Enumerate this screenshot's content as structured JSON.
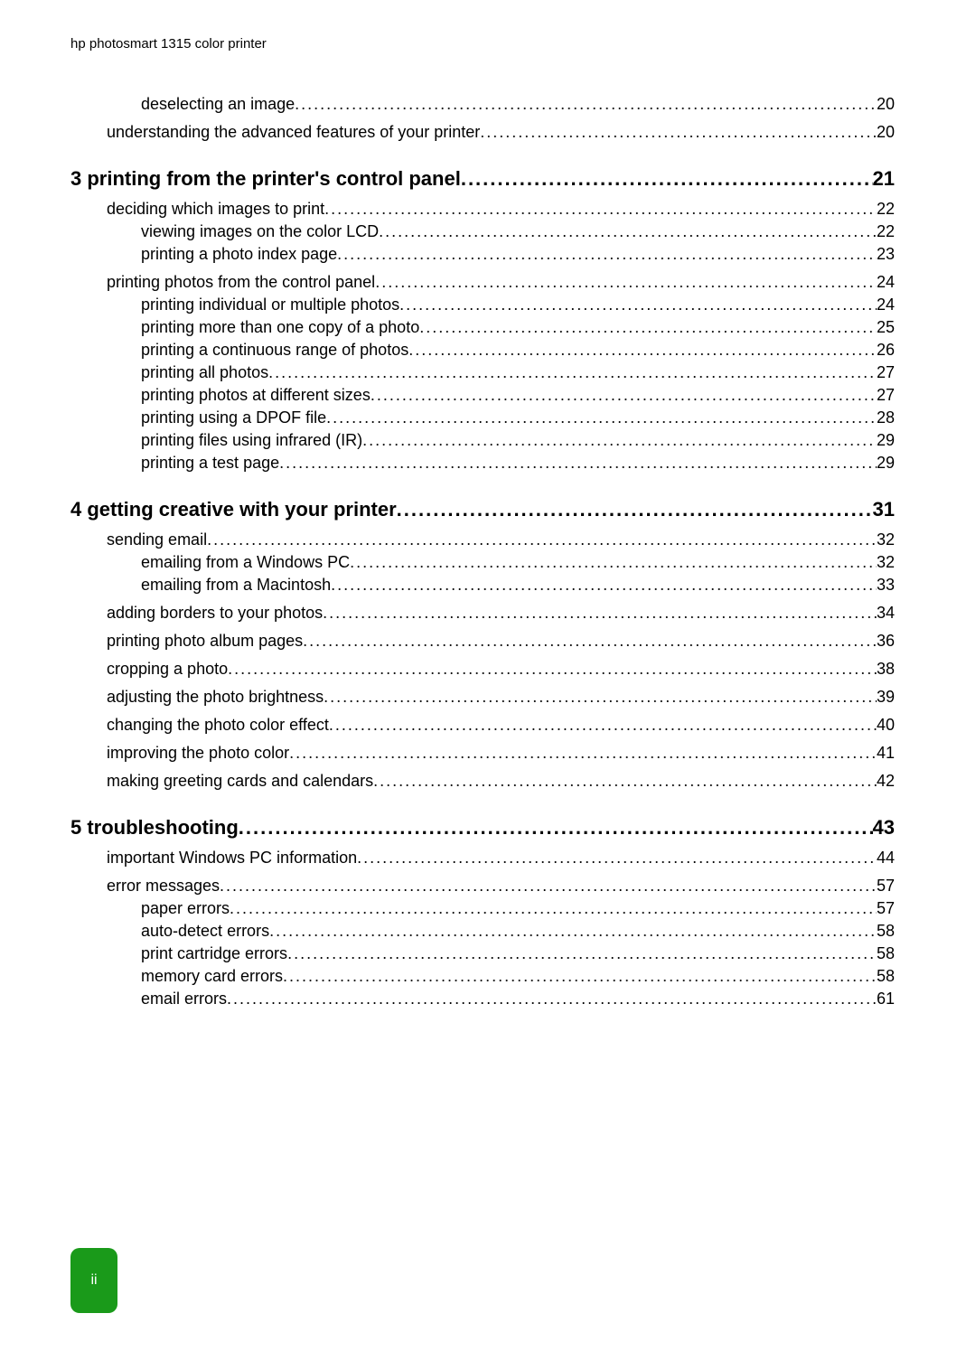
{
  "header": "hp photosmart 1315 color printer",
  "page_tab": "ii",
  "colors": {
    "text": "#000000",
    "bg": "#ffffff",
    "tab_bg": "#1a9a1a",
    "tab_text": "#ffffff"
  },
  "fontsizes": {
    "header": 15,
    "chapter": 22,
    "entry": 18,
    "tab": 16
  },
  "toc": [
    {
      "level": 2,
      "label": "deselecting an image",
      "page": "20"
    },
    {
      "level": 1,
      "label": "understanding the advanced features of your printer",
      "page": "20"
    },
    {
      "level": 0,
      "label": "3 printing from the printer's control panel",
      "page": "21"
    },
    {
      "level": 1,
      "label": "deciding which images to print",
      "page": "22"
    },
    {
      "level": 2,
      "label": "viewing images on the color LCD",
      "page": "22"
    },
    {
      "level": 2,
      "label": "printing a photo index page",
      "page": "23"
    },
    {
      "level": 1,
      "label": "printing photos from the control panel",
      "page": "24"
    },
    {
      "level": 2,
      "label": "printing individual or multiple photos",
      "page": "24"
    },
    {
      "level": 2,
      "label": "printing more than one copy of a photo",
      "page": "25"
    },
    {
      "level": 2,
      "label": "printing a continuous range of photos",
      "page": "26"
    },
    {
      "level": 2,
      "label": "printing all photos",
      "page": "27"
    },
    {
      "level": 2,
      "label": "printing photos at different sizes",
      "page": "27"
    },
    {
      "level": 2,
      "label": "printing using a DPOF file",
      "page": "28"
    },
    {
      "level": 2,
      "label": "printing files using infrared (IR)",
      "page": "29"
    },
    {
      "level": 2,
      "label": "printing a test page",
      "page": "29"
    },
    {
      "level": 0,
      "label": "4 getting creative with your printer",
      "page": "31"
    },
    {
      "level": 1,
      "label": "sending email",
      "page": "32"
    },
    {
      "level": 2,
      "label": "emailing from a Windows PC",
      "page": "32"
    },
    {
      "level": 2,
      "label": "emailing from a Macintosh",
      "page": "33"
    },
    {
      "level": 1,
      "label": "adding borders to your photos",
      "page": "34"
    },
    {
      "level": 1,
      "label": "printing photo album pages",
      "page": "36"
    },
    {
      "level": 1,
      "label": "cropping a photo",
      "page": "38"
    },
    {
      "level": 1,
      "label": "adjusting the photo brightness",
      "page": "39"
    },
    {
      "level": 1,
      "label": "changing the photo color effect",
      "page": "40"
    },
    {
      "level": 1,
      "label": "improving the photo color",
      "page": "41"
    },
    {
      "level": 1,
      "label": "making greeting cards and calendars",
      "page": "42"
    },
    {
      "level": 0,
      "label": "5 troubleshooting",
      "page": "43"
    },
    {
      "level": 1,
      "label": "important Windows PC information",
      "page": "44"
    },
    {
      "level": 1,
      "label": "error messages",
      "page": "57"
    },
    {
      "level": 2,
      "label": "paper errors",
      "page": "57"
    },
    {
      "level": 2,
      "label": "auto-detect errors",
      "page": "58"
    },
    {
      "level": 2,
      "label": "print cartridge errors",
      "page": "58"
    },
    {
      "level": 2,
      "label": "memory card errors",
      "page": "58"
    },
    {
      "level": 2,
      "label": "email errors",
      "page": "61"
    }
  ]
}
